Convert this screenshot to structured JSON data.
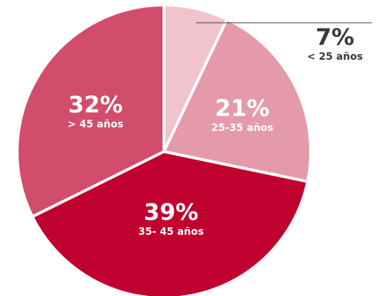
{
  "chart_data": {
    "type": "pie",
    "categories": [
      "< 25 años",
      "25-35 años",
      "35- 45 años",
      "> 45 años"
    ],
    "values": [
      7,
      21,
      39,
      32
    ],
    "value_labels": [
      "7%",
      "21%",
      "39%",
      "32%"
    ],
    "colors": [
      "#f0c3cd",
      "#e59aaa",
      "#c0002f",
      "#d24d6b"
    ]
  }
}
